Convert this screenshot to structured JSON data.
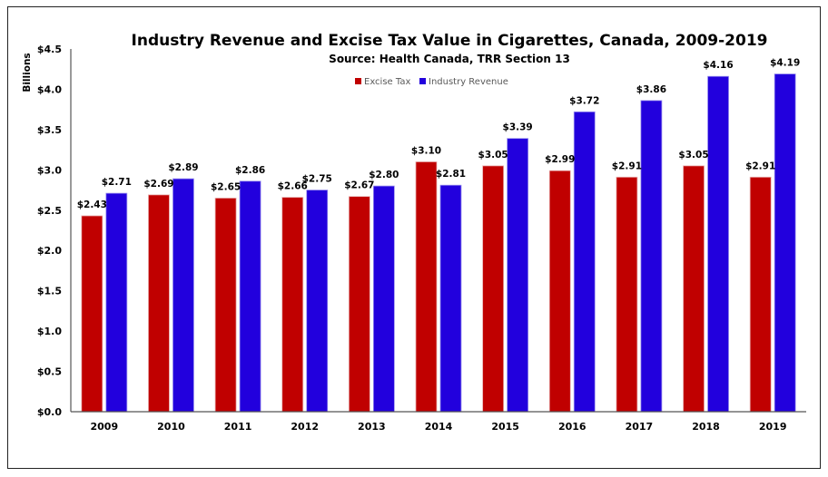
{
  "chart_data": {
    "type": "bar",
    "title": "Industry Revenue and Excise Tax Value in Cigarettes, Canada, 2009-2019",
    "subtitle": "Source: Health Canada, TRR Section 13",
    "xlabel": "",
    "ylabel": "Billions",
    "ylim": [
      0,
      4.5
    ],
    "yticks": [
      0,
      0.5,
      1.0,
      1.5,
      2.0,
      2.5,
      3.0,
      3.5,
      4.0,
      4.5
    ],
    "ytick_labels": [
      "$0.0",
      "$0.5",
      "$1.0",
      "$1.5",
      "$2.0",
      "$2.5",
      "$3.0",
      "$3.5",
      "$4.0",
      "$4.5"
    ],
    "grid": false,
    "legend_position": "top-center",
    "categories": [
      "2009",
      "2010",
      "2011",
      "2012",
      "2013",
      "2014",
      "2015",
      "2016",
      "2017",
      "2018",
      "2019"
    ],
    "series": [
      {
        "name": "Excise Tax",
        "color": "#C00000",
        "values": [
          2.43,
          2.69,
          2.65,
          2.66,
          2.67,
          3.1,
          3.05,
          2.99,
          2.91,
          3.05,
          2.91
        ],
        "labels": [
          "$2.43",
          "$2.69",
          "$2.65",
          "$2.66",
          "$2.67",
          "$3.10",
          "$3.05",
          "$2.99",
          "$2.91",
          "$3.05",
          "$2.91"
        ]
      },
      {
        "name": "Industry Revenue",
        "color": "#2200DD",
        "values": [
          2.71,
          2.89,
          2.86,
          2.75,
          2.8,
          2.81,
          3.39,
          3.72,
          3.86,
          4.16,
          4.19
        ],
        "labels": [
          "$2.71",
          "$2.89",
          "$2.86",
          "$2.75",
          "$2.80",
          "$2.81",
          "$3.39",
          "$3.72",
          "$3.86",
          "$4.16",
          "$4.19"
        ]
      }
    ]
  }
}
